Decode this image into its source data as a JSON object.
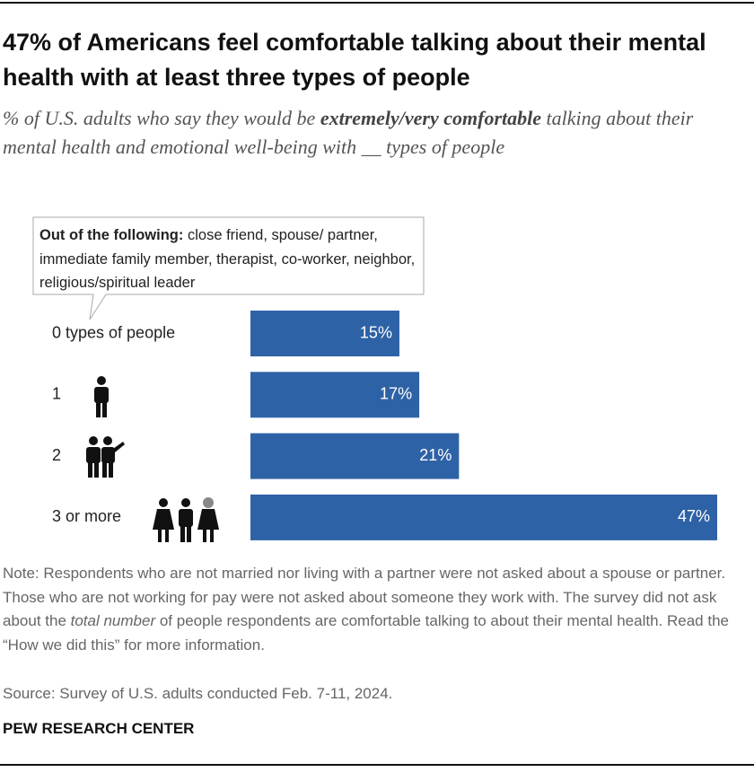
{
  "chart_data": {
    "type": "bar",
    "title": "47% of Americans feel comfortable talking about their mental health with at least three types of people",
    "subtitle": [
      "% of U.S. adults who say they would be ",
      "extremely/very comfortable",
      " talking about their mental health and emotional well-being with __ types of people"
    ],
    "annotation": {
      "heading": "Out of the following:",
      "text": "close friend, spouse/ partner, immediate family member, therapist, co-worker, neighbor, religious/spiritual leader"
    },
    "categories": [
      "0 types of people",
      "1",
      "2",
      "3 or more"
    ],
    "values": [
      15,
      17,
      21,
      47
    ],
    "value_labels": [
      "15%",
      "17%",
      "21%",
      "47%"
    ],
    "color": "#2e62a6",
    "note": [
      "Note: Respondents who are not married nor living with a partner were not asked about a spouse or partner. Those who are not working for pay were not asked about someone they work with. The survey did not ask about the ",
      "total number",
      " of people respondents are comfortable talking to about their mental health. Read the “How we did this” for more information."
    ],
    "source": "Source: Survey of U.S. adults conducted Feb. 7-11, 2024.",
    "credit": "PEW RESEARCH CENTER"
  }
}
